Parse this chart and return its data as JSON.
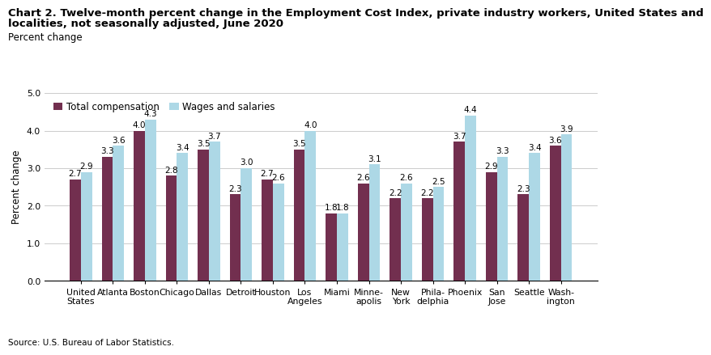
{
  "title_line1": "Chart 2. Twelve-month percent change in the Employment Cost Index, private industry workers, United States and",
  "title_line2": "localities, not seasonally adjusted, June 2020",
  "ylabel": "Percent change",
  "source": "Source: U.S. Bureau of Labor Statistics.",
  "categories": [
    "United\nStates",
    "Atlanta",
    "Boston",
    "Chicago",
    "Dallas",
    "Detroit",
    "Houston",
    "Los\nAngeles",
    "Miami",
    "Minne-\napolis",
    "New\nYork",
    "Phila-\ndelphia",
    "Phoenix",
    "San\nJose",
    "Seattle",
    "Wash-\nington"
  ],
  "total_compensation": [
    2.7,
    3.3,
    4.0,
    2.8,
    3.5,
    2.3,
    2.7,
    3.5,
    1.8,
    2.6,
    2.2,
    2.2,
    3.7,
    2.9,
    2.3,
    3.6
  ],
  "wages_and_salaries": [
    2.9,
    3.6,
    4.3,
    3.4,
    3.7,
    3.0,
    2.6,
    4.0,
    1.8,
    3.1,
    2.6,
    2.5,
    4.4,
    3.3,
    3.4,
    3.9
  ],
  "total_compensation_labels": [
    "2.7",
    "3.3",
    "4.0",
    "2.8",
    "3.5",
    "2.3",
    "2.7",
    "3.5",
    "1.8",
    "2.6",
    "2.2",
    "2.2",
    "3.7",
    "2.9",
    "2.3",
    "3.6"
  ],
  "wages_and_salaries_labels": [
    "2.9",
    "3.6",
    "4.3",
    "3.4",
    "3.7",
    "3.0",
    "2.6",
    "4.0",
    "1.8",
    "3.1",
    "2.6",
    "2.5",
    "4.4",
    "3.3",
    "3.4",
    "3.9"
  ],
  "color_total": "#722F4F",
  "color_wages": "#ADD8E6",
  "ylim": [
    0.0,
    5.0
  ],
  "yticks": [
    0.0,
    1.0,
    2.0,
    3.0,
    4.0,
    5.0
  ],
  "legend_labels": [
    "Total compensation",
    "Wages and salaries"
  ],
  "bar_width": 0.35,
  "label_fontsize": 7.5,
  "title_fontsize": 9.5,
  "ylabel_fontsize": 8.5,
  "tick_fontsize": 7.8,
  "legend_fontsize": 8.5
}
